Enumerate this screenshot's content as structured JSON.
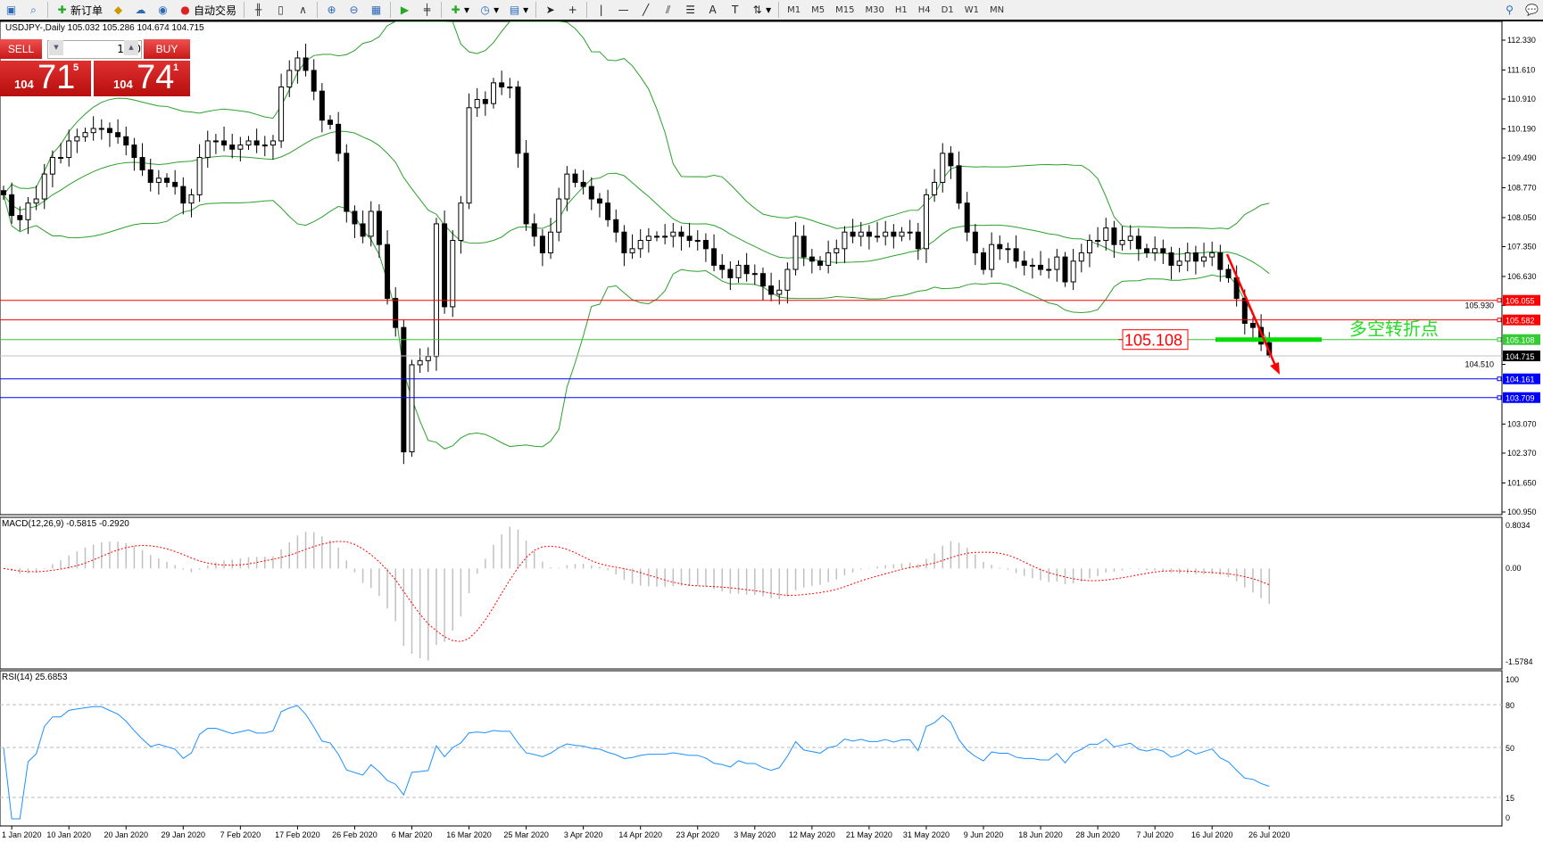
{
  "toolbar": {
    "new_order": "新订单",
    "auto_trading": "自动交易",
    "timeframes": [
      "M1",
      "M5",
      "M15",
      "M30",
      "H1",
      "H4",
      "D1",
      "W1",
      "MN"
    ],
    "icons": [
      "zoom-window-icon",
      "new-order-icon",
      "navigator-icon",
      "data-window-icon",
      "signals-icon",
      "auto-trading-icon",
      "bar-chart-icon",
      "candle-chart-icon",
      "line-chart-icon",
      "zoom-in-icon",
      "zoom-out-icon",
      "tile-windows-icon",
      "autoscroll-icon",
      "chart-shift-icon",
      "indicators-icon",
      "periods-icon",
      "templates-icon",
      "cursor-icon",
      "crosshair-icon",
      "vertical-line-icon",
      "horizontal-line-icon",
      "trendline-icon",
      "fibonacci-icon",
      "channel-icon",
      "text-icon",
      "text-label-icon",
      "arrows-icon",
      "search-icon",
      "chat-icon"
    ]
  },
  "symbol_line": "USDJPY-,Daily  105.032 105.286 104.674 104.715",
  "trade_panel": {
    "sell_label": "SELL",
    "buy_label": "BUY",
    "lot": "1.00",
    "sell": {
      "big": "104",
      "main": "71",
      "pip": "5"
    },
    "buy": {
      "big": "104",
      "main": "74",
      "pip": "1"
    }
  },
  "chart_data": {
    "type": "candlestick",
    "symbol": "USDJPY-",
    "timeframe": "Daily",
    "ylim": [
      100.95,
      112.33
    ],
    "price_ticks": [
      "112.330",
      "111.610",
      "110.910",
      "110.190",
      "109.490",
      "108.770",
      "108.050",
      "107.350",
      "106.630",
      "105.930",
      "104.510",
      "103.070",
      "102.370",
      "101.650",
      "100.950"
    ],
    "closes": [
      108.6,
      108.1,
      108.0,
      108.4,
      108.5,
      109.1,
      109.5,
      109.5,
      109.9,
      110.0,
      110.1,
      110.2,
      110.2,
      110.1,
      110.0,
      109.8,
      109.5,
      109.2,
      108.9,
      109.0,
      108.9,
      108.8,
      108.4,
      108.6,
      109.5,
      109.9,
      109.9,
      109.8,
      109.7,
      109.8,
      109.9,
      109.8,
      109.8,
      109.9,
      111.2,
      111.6,
      111.9,
      111.6,
      111.1,
      110.4,
      110.3,
      109.6,
      108.2,
      107.9,
      107.6,
      108.2,
      107.4,
      106.1,
      105.4,
      102.4,
      104.5,
      104.6,
      104.7,
      107.9,
      105.9,
      107.5,
      108.4,
      110.7,
      110.9,
      110.8,
      111.3,
      111.2,
      111.2,
      109.6,
      107.9,
      107.6,
      107.2,
      107.7,
      108.5,
      109.1,
      108.9,
      108.8,
      108.5,
      108.4,
      108.0,
      107.7,
      107.2,
      107.3,
      107.5,
      107.6,
      107.6,
      107.6,
      107.7,
      107.6,
      107.5,
      107.5,
      107.3,
      106.9,
      106.8,
      106.6,
      106.9,
      106.7,
      106.7,
      106.4,
      106.2,
      106.3,
      106.8,
      107.6,
      107.1,
      107.0,
      106.9,
      107.2,
      107.3,
      107.7,
      107.6,
      107.7,
      107.6,
      107.6,
      107.7,
      107.6,
      107.7,
      107.7,
      107.3,
      108.6,
      108.9,
      109.6,
      109.3,
      108.4,
      107.7,
      107.2,
      106.8,
      107.4,
      107.3,
      107.3,
      107.0,
      106.9,
      106.9,
      106.8,
      106.8,
      107.1,
      106.5,
      107.0,
      107.2,
      107.5,
      107.5,
      107.8,
      107.4,
      107.5,
      107.6,
      107.3,
      107.2,
      107.3,
      107.2,
      106.9,
      107.0,
      107.2,
      107.0,
      107.1,
      107.2,
      106.8,
      106.6,
      106.1,
      105.5,
      105.4,
      105.0,
      104.715
    ],
    "last_bar": {
      "open": 105.032,
      "high": 105.286,
      "low": 104.674,
      "close": 104.715
    },
    "date_ticks": [
      {
        "label": "1 Jan 2020",
        "bar": 1
      },
      {
        "label": "10 Jan 2020",
        "bar": 8
      },
      {
        "label": "20 Jan 2020",
        "bar": 15
      },
      {
        "label": "29 Jan 2020",
        "bar": 22
      },
      {
        "label": "7 Feb 2020",
        "bar": 29
      },
      {
        "label": "17 Feb 2020",
        "bar": 36
      },
      {
        "label": "26 Feb 2020",
        "bar": 43
      },
      {
        "label": "6 Mar 2020",
        "bar": 50
      },
      {
        "label": "16 Mar 2020",
        "bar": 57
      },
      {
        "label": "25 Mar 2020",
        "bar": 64
      },
      {
        "label": "3 Apr 2020",
        "bar": 71
      },
      {
        "label": "14 Apr 2020",
        "bar": 78
      },
      {
        "label": "23 Apr 2020",
        "bar": 85
      },
      {
        "label": "3 May 2020",
        "bar": 92
      },
      {
        "label": "12 May 2020",
        "bar": 99
      },
      {
        "label": "21 May 2020",
        "bar": 106
      },
      {
        "label": "31 May 2020",
        "bar": 113
      },
      {
        "label": "9 Jun 2020",
        "bar": 120
      },
      {
        "label": "18 Jun 2020",
        "bar": 127
      },
      {
        "label": "28 Jun 2020",
        "bar": 134
      },
      {
        "label": "7 Jul 2020",
        "bar": 141
      },
      {
        "label": "16 Jul 2020",
        "bar": 148
      },
      {
        "label": "26 Jul 2020",
        "bar": 155
      }
    ],
    "hlines": [
      {
        "price": 106.055,
        "label": "106.055",
        "color": "#ff0000"
      },
      {
        "price": 105.582,
        "label": "105.582",
        "color": "#ff0000"
      },
      {
        "price": 105.108,
        "label": "105.108",
        "color": "#33cc33"
      },
      {
        "price": 104.715,
        "label": "104.715",
        "color": "#000000"
      },
      {
        "price": 104.161,
        "label": "104.161",
        "color": "#0000ff"
      },
      {
        "price": 103.709,
        "label": "103.709",
        "color": "#0000ff"
      }
    ],
    "annotation_price_label": "105.108",
    "annotation_text": "多空转折点",
    "bollinger": {
      "period": 20,
      "deviations": 2,
      "color": "#2ca02c"
    },
    "macd": {
      "label": "MACD(12,26,9) -0.5815 -0.2920",
      "ylim": [
        -1.5784,
        0.8034
      ],
      "ticks": [
        "0.8034",
        "0.00",
        "-1.5784"
      ],
      "signal_color": "#ff0000"
    },
    "rsi": {
      "label": "RSI(14) 25.6853",
      "ylim": [
        0,
        100
      ],
      "ticks": [
        "100",
        "80",
        "50",
        "15",
        "0"
      ],
      "color": "#1e90ff"
    }
  }
}
